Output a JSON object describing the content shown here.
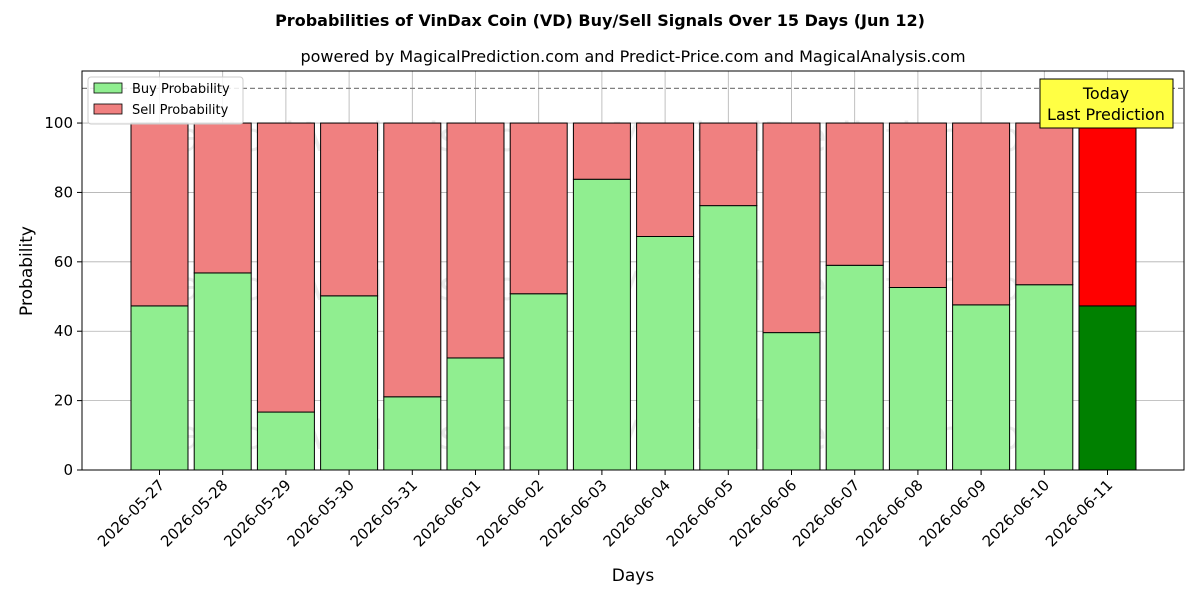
{
  "chart_data": {
    "type": "bar",
    "stacked": true,
    "title": "Probabilities of VinDax Coin (VD) Buy/Sell Signals Over 15 Days (Jun 12)",
    "subtitle": "powered by MagicalPrediction.com and Predict-Price.com and MagicalAnalysis.com",
    "xlabel": "Days",
    "ylabel": "Probability",
    "ylim": [
      0,
      115
    ],
    "yticks": [
      0,
      20,
      40,
      60,
      80,
      100
    ],
    "grid": true,
    "legend_position": "top-left",
    "reference_line": {
      "y": 110,
      "style": "dashed"
    },
    "categories": [
      "2026-05-27",
      "2026-05-28",
      "2026-05-29",
      "2026-05-30",
      "2026-05-31",
      "2026-06-01",
      "2026-06-02",
      "2026-06-03",
      "2026-06-04",
      "2026-06-05",
      "2026-06-06",
      "2026-06-07",
      "2026-06-08",
      "2026-06-09",
      "2026-06-10",
      "2026-06-11"
    ],
    "series": [
      {
        "name": "Buy Probability",
        "color": "#90ee90",
        "highlight_color": "#008000",
        "values": [
          47.3,
          56.8,
          16.7,
          50.2,
          21.1,
          32.3,
          50.8,
          83.8,
          67.3,
          76.2,
          39.6,
          59.0,
          52.6,
          47.6,
          53.4,
          47.3
        ]
      },
      {
        "name": "Sell Probability",
        "color": "#f08080",
        "highlight_color": "#ff0000",
        "values": [
          52.7,
          43.2,
          83.3,
          49.8,
          78.9,
          67.7,
          49.2,
          16.2,
          32.7,
          23.8,
          60.4,
          41.0,
          47.4,
          52.4,
          46.6,
          52.7
        ]
      }
    ],
    "highlight_index": 15,
    "annotation": {
      "line1": "Today",
      "line2": "Last Prediction",
      "box_color": "#ffff44"
    },
    "watermarks": [
      "MagicalAnalysis.com",
      "MagicalPrediction.com"
    ]
  }
}
